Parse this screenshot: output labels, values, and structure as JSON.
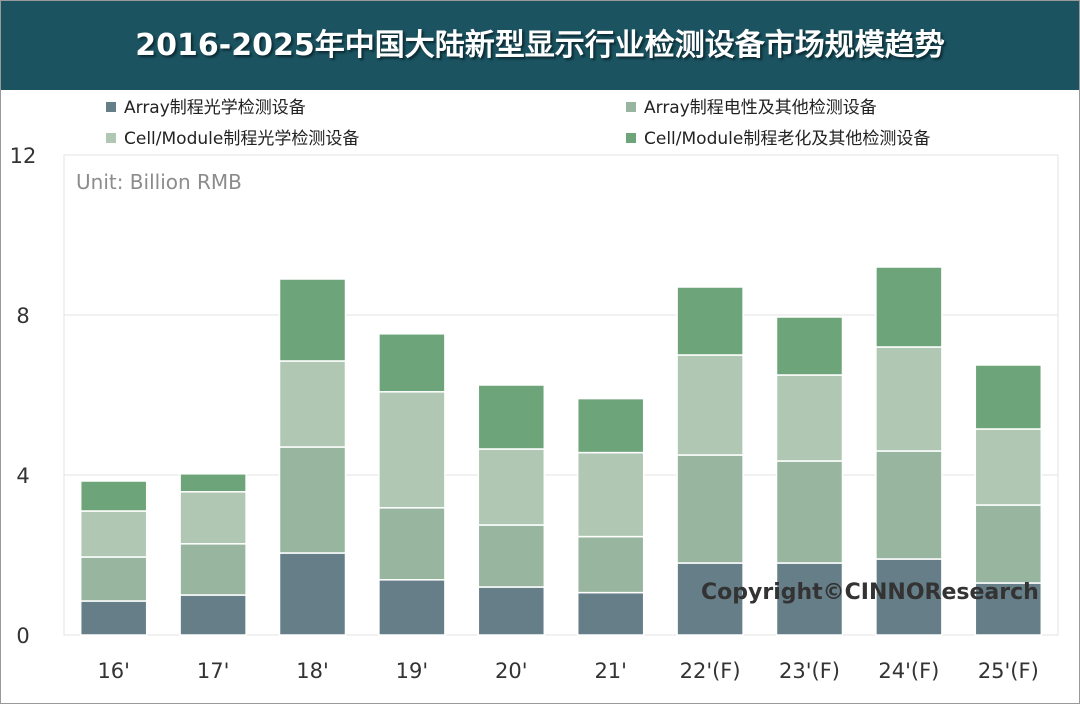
{
  "title": "2016-2025年中国大陆新型显示行业检测设备市场规模趋势",
  "unit_label": "Unit: Billion RMB",
  "copyright": "Copyright©CINNOResearch",
  "legend": [
    {
      "label": "Array制程光学检测设备",
      "color": "#667e88"
    },
    {
      "label": "Array制程电性及其他检测设备",
      "color": "#98b59f"
    },
    {
      "label": "Cell/Module制程光学检测设备",
      "color": "#b0c8b3"
    },
    {
      "label": "Cell/Module制程老化及其他检测设备",
      "color": "#6ea47a"
    }
  ],
  "chart_data": {
    "type": "bar",
    "stacked": true,
    "categories": [
      "16'",
      "17'",
      "18'",
      "19'",
      "20'",
      "21'",
      "22'(F)",
      "23'(F)",
      "24'(F)",
      "25'(F)"
    ],
    "series": [
      {
        "name": "Array制程光学检测设备",
        "color": "#667e88",
        "values": [
          0.85,
          1.0,
          2.05,
          1.38,
          1.2,
          1.06,
          1.8,
          1.8,
          1.9,
          1.3
        ]
      },
      {
        "name": "Array制程电性及其他检测设备",
        "color": "#98b59f",
        "values": [
          1.1,
          1.28,
          2.65,
          1.8,
          1.55,
          1.4,
          2.7,
          2.55,
          2.7,
          1.95
        ]
      },
      {
        "name": "Cell/Module制程光学检测设备",
        "color": "#b0c8b3",
        "values": [
          1.15,
          1.3,
          2.15,
          2.9,
          1.9,
          2.1,
          2.5,
          2.15,
          2.6,
          1.9
        ]
      },
      {
        "name": "Cell/Module制程老化及其他检测设备",
        "color": "#6ea47a",
        "values": [
          0.75,
          0.45,
          2.05,
          1.45,
          1.6,
          1.35,
          1.7,
          1.45,
          2.0,
          1.6
        ]
      }
    ],
    "yticks": [
      0,
      4,
      8,
      12
    ],
    "ylim": [
      0,
      12
    ],
    "grid": true,
    "legend_placement": "top"
  }
}
